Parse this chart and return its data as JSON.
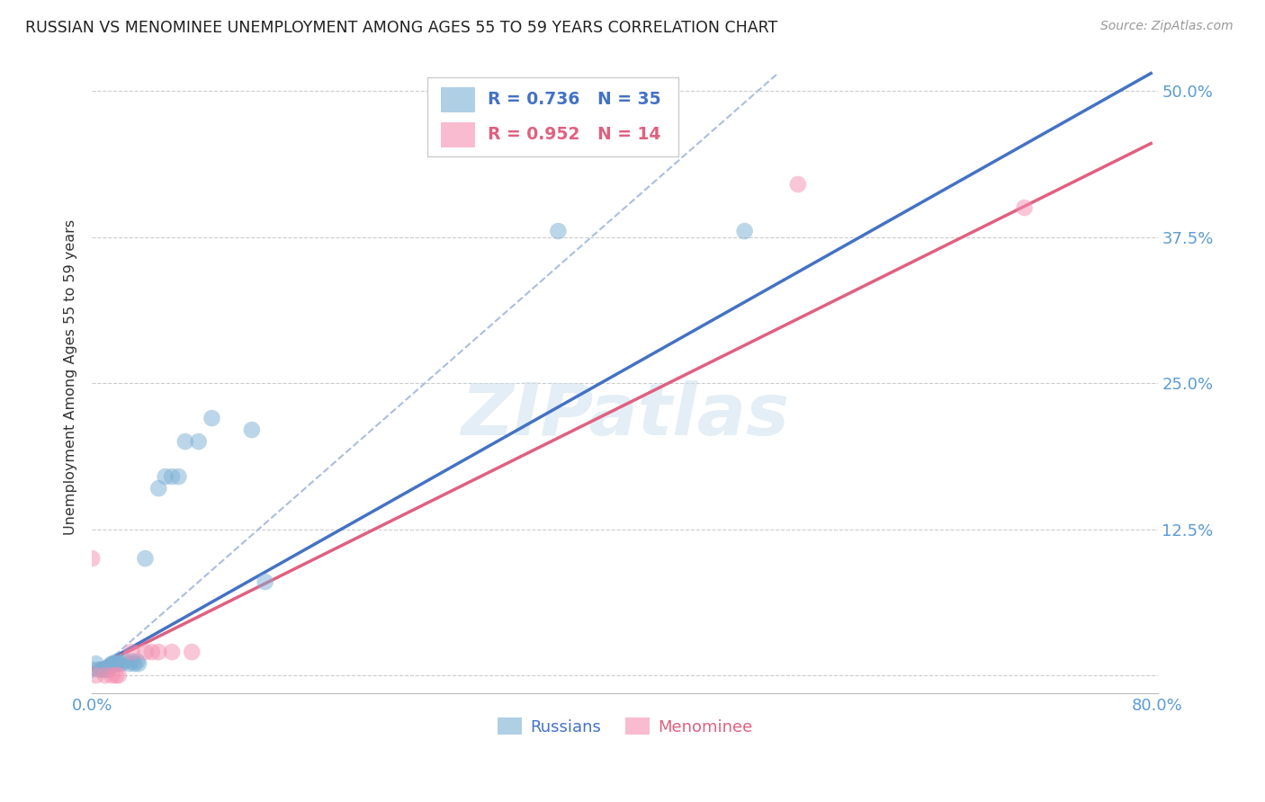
{
  "title": "RUSSIAN VS MENOMINEE UNEMPLOYMENT AMONG AGES 55 TO 59 YEARS CORRELATION CHART",
  "source": "Source: ZipAtlas.com",
  "ylabel": "Unemployment Among Ages 55 to 59 years",
  "xlim": [
    0.0,
    0.8
  ],
  "ylim": [
    -0.015,
    0.525
  ],
  "xticks": [
    0.0,
    0.2,
    0.4,
    0.6,
    0.8
  ],
  "xticklabels": [
    "0.0%",
    "",
    "",
    "",
    "80.0%"
  ],
  "yticks": [
    0.0,
    0.125,
    0.25,
    0.375,
    0.5
  ],
  "yticklabels": [
    "",
    "12.5%",
    "25.0%",
    "37.5%",
    "50.0%"
  ],
  "background_color": "#ffffff",
  "grid_color": "#cccccc",
  "title_color": "#222222",
  "axis_color": "#5b9bd5",
  "watermark": "ZIPatlas",
  "legend_R1": "0.736",
  "legend_N1": "35",
  "legend_R2": "0.952",
  "legend_N2": "14",
  "russian_color": "#7bafd4",
  "menominee_color": "#f48fb1",
  "russian_scatter": [
    [
      0.0,
      0.005
    ],
    [
      0.003,
      0.01
    ],
    [
      0.005,
      0.005
    ],
    [
      0.007,
      0.005
    ],
    [
      0.008,
      0.005
    ],
    [
      0.009,
      0.005
    ],
    [
      0.01,
      0.005
    ],
    [
      0.012,
      0.005
    ],
    [
      0.013,
      0.008
    ],
    [
      0.014,
      0.008
    ],
    [
      0.015,
      0.01
    ],
    [
      0.016,
      0.01
    ],
    [
      0.017,
      0.01
    ],
    [
      0.018,
      0.01
    ],
    [
      0.019,
      0.012
    ],
    [
      0.02,
      0.01
    ],
    [
      0.022,
      0.01
    ],
    [
      0.025,
      0.012
    ],
    [
      0.028,
      0.01
    ],
    [
      0.03,
      0.012
    ],
    [
      0.032,
      0.01
    ],
    [
      0.034,
      0.012
    ],
    [
      0.035,
      0.01
    ],
    [
      0.04,
      0.1
    ],
    [
      0.05,
      0.16
    ],
    [
      0.055,
      0.17
    ],
    [
      0.06,
      0.17
    ],
    [
      0.065,
      0.17
    ],
    [
      0.07,
      0.2
    ],
    [
      0.08,
      0.2
    ],
    [
      0.09,
      0.22
    ],
    [
      0.12,
      0.21
    ],
    [
      0.13,
      0.08
    ],
    [
      0.35,
      0.38
    ],
    [
      0.49,
      0.38
    ]
  ],
  "menominee_scatter": [
    [
      0.0,
      0.1
    ],
    [
      0.003,
      0.0
    ],
    [
      0.01,
      0.0
    ],
    [
      0.015,
      0.0
    ],
    [
      0.018,
      0.0
    ],
    [
      0.02,
      0.0
    ],
    [
      0.03,
      0.02
    ],
    [
      0.04,
      0.02
    ],
    [
      0.045,
      0.02
    ],
    [
      0.05,
      0.02
    ],
    [
      0.06,
      0.02
    ],
    [
      0.075,
      0.02
    ],
    [
      0.53,
      0.42
    ],
    [
      0.7,
      0.4
    ]
  ],
  "russian_trendline": [
    [
      0.0,
      0.005
    ],
    [
      0.795,
      0.515
    ]
  ],
  "menominee_trendline": [
    [
      0.0,
      0.005
    ],
    [
      0.795,
      0.455
    ]
  ],
  "russian_trendline_color": "#4472c4",
  "menominee_trendline_color": "#e06080",
  "diagonal_color": "#aabfdd",
  "diagonal_line": [
    [
      0.0,
      0.0
    ],
    [
      0.515,
      0.515
    ]
  ]
}
